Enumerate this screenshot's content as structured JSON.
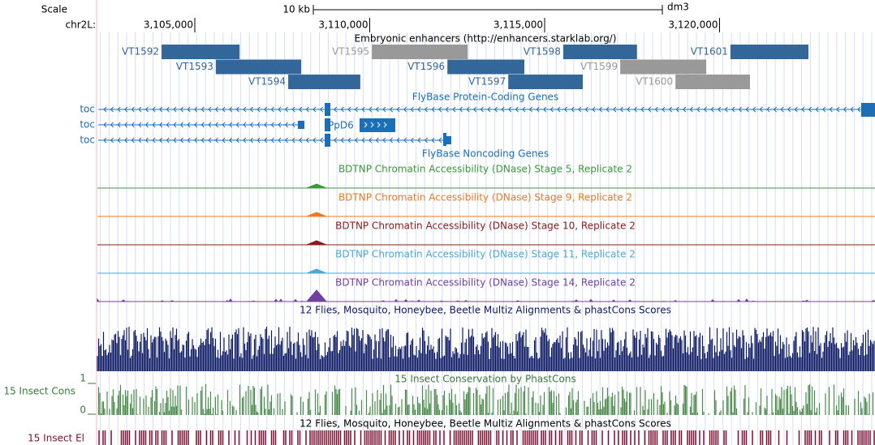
{
  "ruler": {
    "scale_label": "Scale",
    "span_label": "10 kb",
    "assembly": "dm3",
    "chrom": "chr2L:",
    "ticks": [
      {
        "value": 3105000,
        "label": "3,105,000"
      },
      {
        "value": 3110000,
        "label": "3,110,000"
      },
      {
        "value": 3115000,
        "label": "3,115,000"
      },
      {
        "value": 3120000,
        "label": "3,120,000"
      }
    ]
  },
  "enhancers": {
    "title": "Embryonic enhancers (http://enhancers.starklab.org/)",
    "items": [
      {
        "label": "VT1592",
        "start": 3104050,
        "end": 3106280,
        "color": "#336699"
      },
      {
        "label": "VT1593",
        "start": 3105600,
        "end": 3108040,
        "color": "#336699"
      },
      {
        "label": "VT1594",
        "start": 3107670,
        "end": 3109730,
        "color": "#336699"
      },
      {
        "label": "VT1595",
        "start": 3110060,
        "end": 3112800,
        "color": "#999999"
      },
      {
        "label": "VT1596",
        "start": 3112220,
        "end": 3114420,
        "color": "#336699"
      },
      {
        "label": "VT1597",
        "start": 3113960,
        "end": 3116090,
        "color": "#336699"
      },
      {
        "label": "VT1598",
        "start": 3115530,
        "end": 3117640,
        "color": "#336699"
      },
      {
        "label": "VT1599",
        "start": 3117160,
        "end": 3119620,
        "color": "#999999"
      },
      {
        "label": "VT1600",
        "start": 3118740,
        "end": 3120870,
        "color": "#999999"
      },
      {
        "label": "VT1601",
        "start": 3120310,
        "end": 3122540,
        "color": "#336699"
      }
    ]
  },
  "genes": {
    "title": "FlyBase Protein-Coding Genes",
    "rows": [
      "toc",
      "toc",
      "toc"
    ],
    "inner_label": "PpD6"
  },
  "noncoding": {
    "title": "FlyBase Noncoding Genes"
  },
  "dnase": [
    {
      "title": "BDTNP Chromatin Accessibility (DNase) Stage 5, Replicate 2",
      "color": "#3a9a3a"
    },
    {
      "title": "BDTNP Chromatin Accessibility (DNase) Stage 9, Replicate 2",
      "color": "#f07820"
    },
    {
      "title": "BDTNP Chromatin Accessibility (DNase) Stage 10, Replicate 2",
      "color": "#8b1a1a"
    },
    {
      "title": "BDTNP Chromatin Accessibility (DNase) Stage 11, Replicate 2",
      "color": "#4aa8d8"
    },
    {
      "title": "BDTNP Chromatin Accessibility (DNase) Stage 14, Replicate 2",
      "color": "#7040a0"
    }
  ],
  "multiz": {
    "title": "12 Flies, Mosquito, Honeybee, Beetle Multiz Alignments & phastCons Scores"
  },
  "phastcons": {
    "title": "15 Insect Conservation by PhastCons",
    "side_label": "15 Insect Cons",
    "max_label": "1",
    "min_label": "0"
  },
  "elements": {
    "title": "12 Flies, Mosquito, Honeybee, Beetle Multiz Alignments & phastCons Scores",
    "side_label": "15 Insect El"
  }
}
